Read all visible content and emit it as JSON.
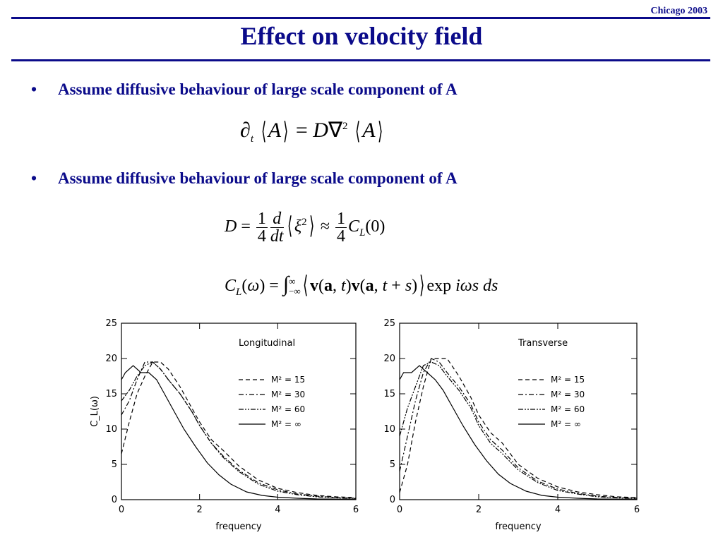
{
  "header": {
    "tag": "Chicago 2003",
    "title": "Effect on velocity field"
  },
  "bullets": [
    "Assume diffusive behaviour of large scale component of A",
    "Assume diffusive behaviour of large scale component of A"
  ],
  "equations": {
    "diffusion": "∂t ⟨A⟩ = D∇² ⟨A⟩",
    "D_def": "D = (1/4) d/dt ⟨ξ²⟩ ≈ (1/4) C_L(0)",
    "CL_def": "C_L(ω) = ∫_{-∞}^{∞} ⟨v(a,t) v(a,t+s)⟩ exp iωs ds"
  },
  "colors": {
    "accent": "#0b0b8a"
  },
  "chart_data": [
    {
      "type": "line",
      "title": "Longitudinal",
      "xlabel": "frequency",
      "ylabel": "C_L(ω)",
      "xlim": [
        0,
        6
      ],
      "ylim": [
        0,
        25
      ],
      "xticks": [
        0,
        2,
        4,
        6
      ],
      "yticks": [
        0,
        5,
        10,
        15,
        20,
        25
      ],
      "legend_position": "right-middle",
      "series": [
        {
          "name": "M² = 15",
          "dash": "dashed",
          "x": [
            0,
            0.2,
            0.4,
            0.6,
            0.8,
            1.0,
            1.2,
            1.5,
            1.8,
            2.0,
            2.3,
            2.6,
            3.0,
            3.5,
            4.0,
            4.5,
            5.0,
            5.5,
            6.0
          ],
          "y": [
            6.5,
            11,
            15,
            17.5,
            19.5,
            19.5,
            18.5,
            16,
            13,
            11,
            8.5,
            7,
            4.8,
            2.8,
            1.6,
            1.0,
            0.6,
            0.4,
            0.3
          ]
        },
        {
          "name": "M² = 30",
          "dash": "dashdot",
          "x": [
            0,
            0.2,
            0.4,
            0.6,
            0.8,
            1.0,
            1.2,
            1.5,
            1.8,
            2.0,
            2.3,
            2.6,
            3.0,
            3.5,
            4.0,
            4.5,
            5.0,
            5.5,
            6.0
          ],
          "y": [
            12,
            14,
            17,
            19.5,
            19.5,
            18.5,
            17,
            15,
            12.5,
            10.5,
            8,
            6.2,
            4.2,
            2.4,
            1.4,
            0.8,
            0.5,
            0.3,
            0.2
          ]
        },
        {
          "name": "M² = 60",
          "dash": "dashdotdot",
          "x": [
            0,
            0.2,
            0.4,
            0.6,
            0.8,
            1.0,
            1.2,
            1.5,
            1.8,
            2.0,
            2.3,
            2.6,
            3.0,
            3.5,
            4.0,
            4.5,
            5.0,
            5.5,
            6.0
          ],
          "y": [
            14,
            15.5,
            17.5,
            19,
            19.5,
            18.5,
            17,
            15,
            12.5,
            10.5,
            8,
            6,
            4,
            2.2,
            1.2,
            0.7,
            0.4,
            0.25,
            0.15
          ]
        },
        {
          "name": "M² = ∞",
          "dash": "solid",
          "x": [
            0,
            0.1,
            0.3,
            0.5,
            0.7,
            0.9,
            1.1,
            1.3,
            1.6,
            1.9,
            2.2,
            2.5,
            2.8,
            3.2,
            3.6,
            4.0,
            4.5,
            5.0,
            6.0
          ],
          "y": [
            17,
            18,
            19,
            18,
            18,
            17,
            15,
            13,
            10,
            7.5,
            5.2,
            3.5,
            2.2,
            1.1,
            0.6,
            0.35,
            0.2,
            0.1,
            0.05
          ]
        }
      ]
    },
    {
      "type": "line",
      "title": "Transverse",
      "xlabel": "frequency",
      "ylabel": "",
      "xlim": [
        0,
        6
      ],
      "ylim": [
        0,
        25
      ],
      "xticks": [
        0,
        2,
        4,
        6
      ],
      "yticks": [
        0,
        5,
        10,
        15,
        20,
        25
      ],
      "legend_position": "right-middle",
      "series": [
        {
          "name": "M² = 15",
          "dash": "dashed",
          "x": [
            0,
            0.2,
            0.4,
            0.6,
            0.8,
            1.0,
            1.2,
            1.5,
            1.8,
            2.0,
            2.3,
            2.6,
            3.0,
            3.5,
            4.0,
            4.5,
            5.0,
            5.5,
            6.0
          ],
          "y": [
            1,
            5,
            11,
            16,
            20,
            20,
            20,
            17.5,
            14.5,
            12,
            9.5,
            8,
            5,
            3,
            1.8,
            1.1,
            0.7,
            0.4,
            0.3
          ]
        },
        {
          "name": "M² = 30",
          "dash": "dashdot",
          "x": [
            0,
            0.2,
            0.4,
            0.6,
            0.8,
            1.0,
            1.2,
            1.5,
            1.8,
            2.0,
            2.3,
            2.6,
            3.0,
            3.5,
            4.0,
            4.5,
            5.0,
            5.5,
            6.0
          ],
          "y": [
            4,
            9,
            14,
            18,
            20,
            19.5,
            18,
            16,
            13.5,
            11,
            8.5,
            7,
            4.5,
            2.6,
            1.5,
            0.9,
            0.5,
            0.3,
            0.2
          ]
        },
        {
          "name": "M² = 60",
          "dash": "dashdotdot",
          "x": [
            0,
            0.2,
            0.4,
            0.6,
            0.8,
            1.0,
            1.2,
            1.5,
            1.8,
            2.0,
            2.3,
            2.6,
            3.0,
            3.5,
            4.0,
            4.5,
            5.0,
            5.5,
            6.0
          ],
          "y": [
            9,
            13,
            16,
            19,
            19.5,
            19,
            17.5,
            15.5,
            13,
            10.5,
            8,
            6.5,
            4.2,
            2.4,
            1.3,
            0.8,
            0.4,
            0.25,
            0.15
          ]
        },
        {
          "name": "M² = ∞",
          "dash": "solid",
          "x": [
            0,
            0.1,
            0.3,
            0.5,
            0.7,
            0.9,
            1.1,
            1.3,
            1.6,
            1.9,
            2.2,
            2.5,
            2.8,
            3.2,
            3.6,
            4.0,
            4.5,
            5.0,
            6.0
          ],
          "y": [
            17,
            18,
            18,
            19,
            18,
            17,
            15.5,
            13.5,
            10.5,
            7.8,
            5.5,
            3.6,
            2.3,
            1.2,
            0.6,
            0.35,
            0.2,
            0.1,
            0.05
          ]
        }
      ]
    }
  ]
}
